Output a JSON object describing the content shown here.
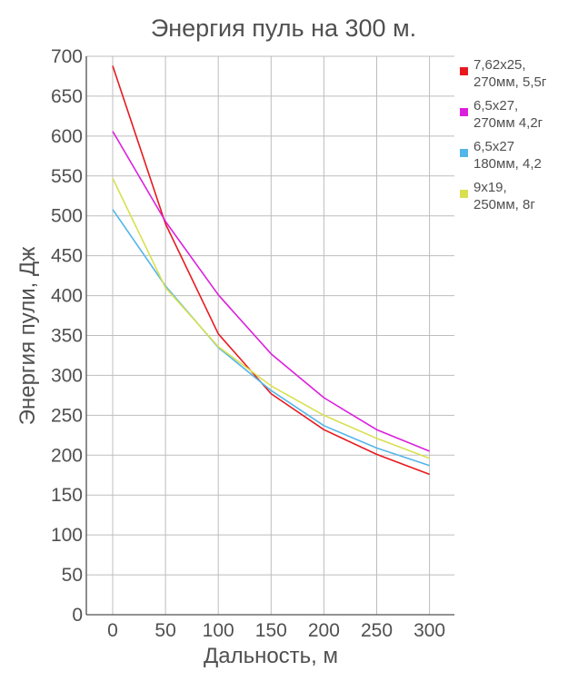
{
  "chart_data": {
    "type": "line",
    "title": "Энергия пуль на 300 м.",
    "xlabel": "Дальность, м",
    "ylabel": "Энергия пули, Дж",
    "x": [
      0,
      50,
      100,
      150,
      200,
      250,
      300
    ],
    "x_ticks": [
      "0",
      "50",
      "100",
      "150",
      "200",
      "250",
      "300"
    ],
    "y_ticks": [
      "0",
      "50",
      "100",
      "150",
      "200",
      "250",
      "300",
      "350",
      "400",
      "450",
      "500",
      "550",
      "600",
      "650",
      "700"
    ],
    "xlim": [
      0,
      300
    ],
    "ylim": [
      0,
      700
    ],
    "grid": true,
    "legend_position": "top-right",
    "series": [
      {
        "name": "7,62х25, 270мм, 5,5г",
        "legend_lines": [
          "7,62х25,",
          "270мм, 5,5г"
        ],
        "color": "#e8191e",
        "values": [
          688,
          490,
          352,
          277,
          232,
          201,
          176
        ]
      },
      {
        "name": "6,5х27, 270мм 4,2г",
        "legend_lines": [
          "6,5х27,",
          "270мм 4,2г"
        ],
        "color": "#dc1fdc",
        "values": [
          606,
          493,
          401,
          327,
          272,
          232,
          205
        ]
      },
      {
        "name": "6,5х27 180мм, 4,2",
        "legend_lines": [
          "6,5х27",
          " 180мм, 4,2"
        ],
        "color": "#54b6e8",
        "values": [
          508,
          412,
          335,
          281,
          237,
          209,
          187
        ]
      },
      {
        "name": "9х19, 250мм, 8г",
        "legend_lines": [
          "9х19,",
          "250мм, 8г"
        ],
        "color": "#d8e050",
        "values": [
          547,
          410,
          336,
          287,
          250,
          221,
          196
        ]
      }
    ]
  }
}
